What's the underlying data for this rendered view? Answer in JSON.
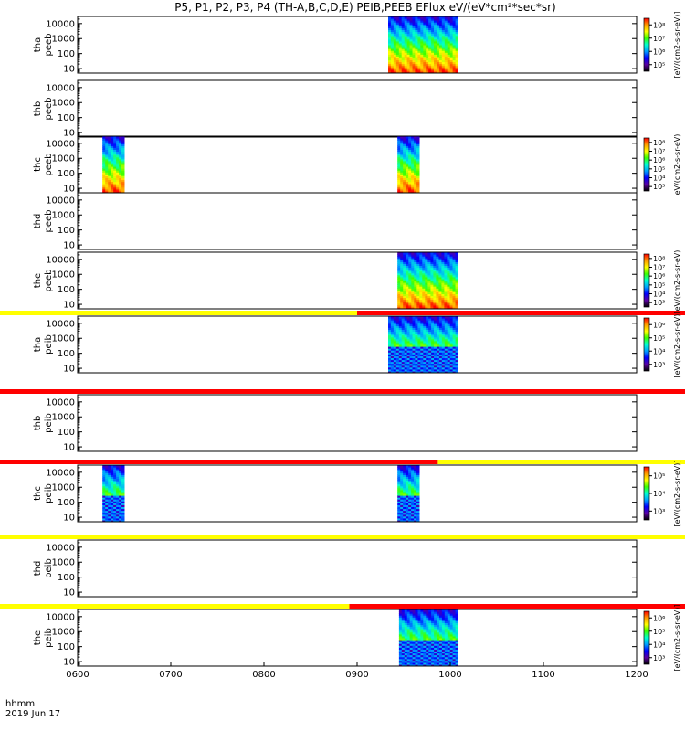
{
  "chart_data": {
    "type": "heatmap",
    "title": "P5, P1, P2, P3, P4 (TH-A,B,C,D,E) PEIB,PEEB EFlux eV/(eV*cm²*sec*sr)",
    "x_ticks": [
      "0600",
      "0700",
      "0800",
      "0900",
      "1000",
      "1100",
      "1200"
    ],
    "x_label_lines": [
      "hhmm",
      "2019 Jun 17"
    ],
    "xlim": [
      "0600",
      "1200"
    ],
    "y_scale": "log",
    "y_ticks": [
      "10",
      "100",
      "1000",
      "10000"
    ],
    "ylim": [
      5,
      30000
    ],
    "colormap": [
      "#000000",
      "#5b00a0",
      "#0000ff",
      "#00a0ff",
      "#00ffd0",
      "#3cff00",
      "#ffff00",
      "#ff9a00",
      "#ff0000"
    ],
    "bar_colors": {
      "yellow": "#ffff00",
      "red": "#ff0000"
    },
    "panels": [
      {
        "label": [
          "tha",
          "peeb"
        ],
        "intervals": [
          [
            "0920",
            "0965"
          ]
        ],
        "colorbar": {
          "ticks": [
            "10⁵",
            "10⁶",
            "10⁷",
            "10⁸"
          ],
          "label": "[eV/(cm2-s-sr-eV)]"
        }
      },
      {
        "label": [
          "thb",
          "peeb"
        ],
        "intervals": []
      },
      {
        "label": [
          "thc",
          "peeb"
        ],
        "intervals": [
          [
            "0616",
            "0630"
          ],
          [
            "0926",
            "0940"
          ]
        ],
        "colorbar": {
          "ticks": [
            "10³",
            "10⁴",
            "10⁵",
            "10⁶",
            "10⁷",
            "10⁸"
          ],
          "label": "eV/(cm2-s-sr-eV)"
        }
      },
      {
        "label": [
          "thd",
          "peeb"
        ],
        "intervals": []
      },
      {
        "label": [
          "the",
          "peeb"
        ],
        "intervals": [
          [
            "0926",
            "0965"
          ]
        ],
        "colorbar": {
          "ticks": [
            "10³",
            "10⁴",
            "10⁵",
            "10⁶",
            "10⁷",
            "10⁸"
          ],
          "label": "eV/(cm2-s-sr-eV)"
        }
      },
      {
        "label": [
          "tha",
          "peib"
        ],
        "intervals": [
          [
            "0920",
            "0965"
          ]
        ],
        "status_bar": [
          [
            "0600",
            "0900",
            "yellow"
          ],
          [
            "0900",
            "1200",
            "red"
          ]
        ],
        "colorbar": {
          "ticks": [
            "10³",
            "10⁴",
            "10⁵",
            "10⁶"
          ],
          "label": "[eV/(cm2-s-sr-eV)]"
        }
      },
      {
        "label": [
          "thb",
          "peib"
        ],
        "intervals": [],
        "status_bar": [
          [
            "0600",
            "1200",
            "red"
          ]
        ]
      },
      {
        "label": [
          "thc",
          "peib"
        ],
        "intervals": [
          [
            "0616",
            "0630"
          ],
          [
            "0926",
            "0940"
          ]
        ],
        "status_bar": [
          [
            "0600",
            "0952",
            "red"
          ],
          [
            "0952",
            "1200",
            "yellow"
          ]
        ],
        "colorbar": {
          "ticks": [
            "10³",
            "10⁴",
            "10⁵"
          ],
          "label": "[eV/(cm2-s-sr-eV)]"
        }
      },
      {
        "label": [
          "thd",
          "peib"
        ],
        "intervals": [],
        "status_bar": [
          [
            "0600",
            "1200",
            "yellow"
          ]
        ]
      },
      {
        "label": [
          "the",
          "peib"
        ],
        "intervals": [
          [
            "0927",
            "0965"
          ]
        ],
        "status_bar": [
          [
            "0600",
            "0855",
            "yellow"
          ],
          [
            "0855",
            "1200",
            "red"
          ]
        ],
        "colorbar": {
          "ticks": [
            "10³",
            "10⁴",
            "10⁵",
            "10⁶"
          ],
          "label": "[eV/(cm2-s-sr-eV)]"
        }
      }
    ]
  }
}
